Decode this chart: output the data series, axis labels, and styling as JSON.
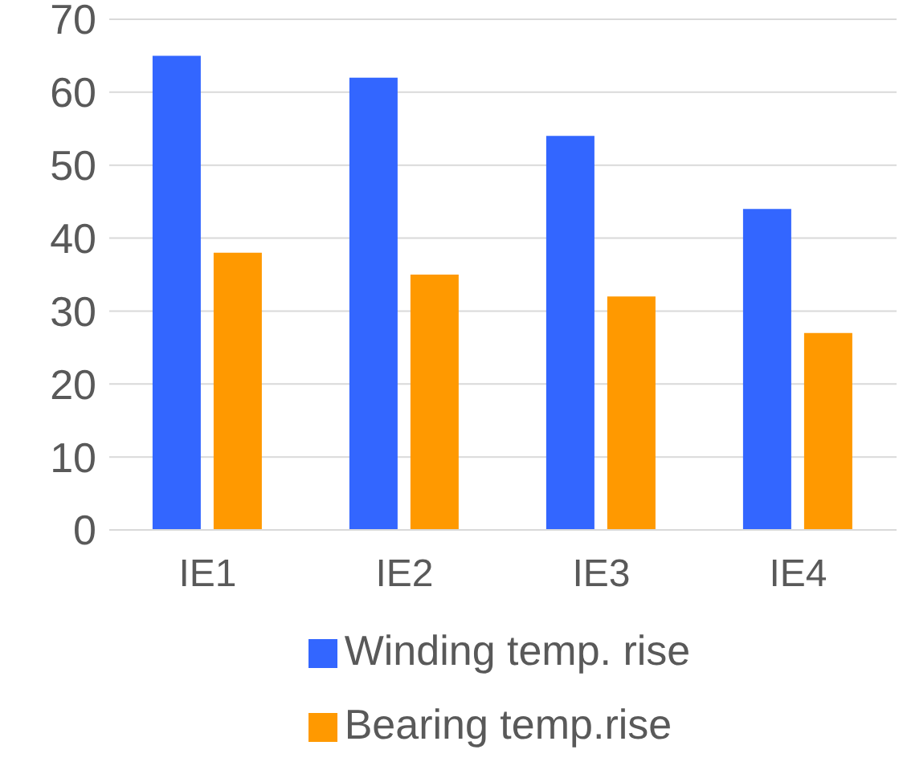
{
  "chart_data": {
    "type": "bar",
    "categories": [
      "IE1",
      "IE2",
      "IE3",
      "IE4"
    ],
    "series": [
      {
        "name": "Winding temp. rise",
        "color": "#3366ff",
        "values": [
          65,
          62,
          54,
          44
        ]
      },
      {
        "name": "Bearing temp.rise",
        "color": "#ff9900",
        "values": [
          38,
          35,
          32,
          27
        ]
      }
    ],
    "ylim": [
      0,
      70
    ],
    "yticks": [
      0,
      10,
      20,
      30,
      40,
      50,
      60,
      70
    ],
    "grid": "y",
    "legend": "bottom"
  }
}
